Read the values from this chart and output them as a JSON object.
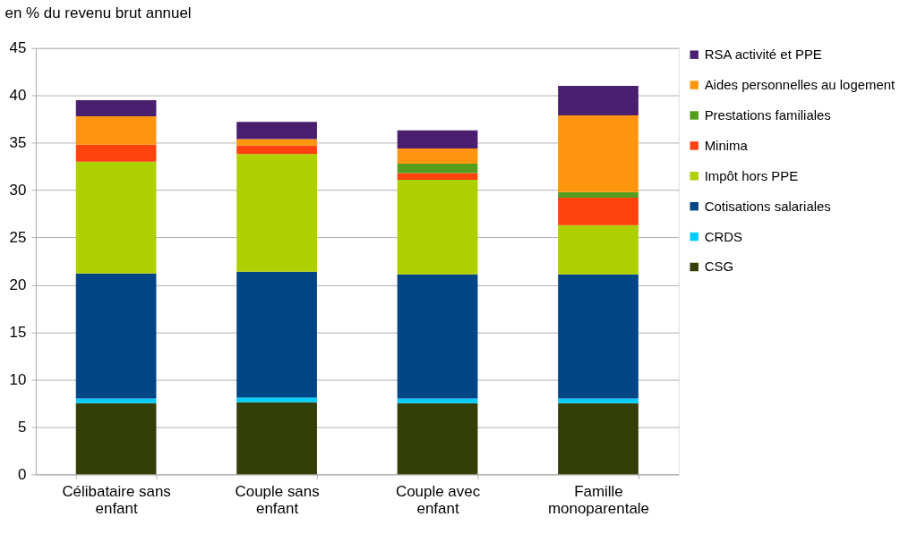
{
  "chart_data": {
    "type": "bar",
    "stacked": true,
    "ylabel": "en % du revenu brut annuel",
    "categories": [
      "Célibataire sans enfant",
      "Couple sans enfant",
      "Couple avec enfant",
      "Famille monoparentale"
    ],
    "series": [
      {
        "name": "CSG",
        "color": "#333f07",
        "values": [
          7.5,
          7.6,
          7.5,
          7.5
        ]
      },
      {
        "name": "CRDS",
        "color": "#00ccff",
        "values": [
          0.5,
          0.5,
          0.5,
          0.5
        ]
      },
      {
        "name": "Cotisations salariales",
        "color": "#004586",
        "values": [
          13.2,
          13.3,
          13.1,
          13.1
        ]
      },
      {
        "name": "Impôt hors PPE",
        "color": "#aecf00",
        "values": [
          11.8,
          12.4,
          10.0,
          5.2
        ]
      },
      {
        "name": "Minima",
        "color": "#ff420e",
        "values": [
          1.8,
          0.9,
          0.7,
          2.9
        ]
      },
      {
        "name": "Prestations familiales",
        "color": "#579d1c",
        "values": [
          0,
          0,
          1.0,
          0.6
        ]
      },
      {
        "name": "Aides personnelles au logement",
        "color": "#ff950e",
        "values": [
          3.0,
          0.7,
          1.6,
          8.1
        ]
      },
      {
        "name": "RSA activité et PPE",
        "color": "#4b1f6f",
        "values": [
          1.7,
          1.8,
          1.9,
          3.1
        ]
      }
    ],
    "ylim": [
      0,
      45
    ],
    "yticks": [
      0,
      5,
      10,
      15,
      20,
      25,
      30,
      35,
      40,
      45
    ],
    "grid": "y",
    "legend": "right"
  }
}
